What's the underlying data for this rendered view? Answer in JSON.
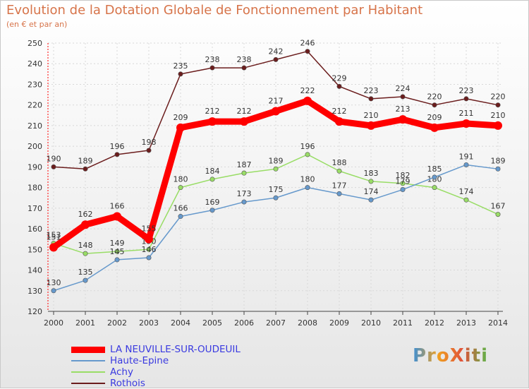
{
  "chart_data": {
    "type": "line",
    "title": "Evolution de la Dotation Globale de Fonctionnement par Habitant",
    "subtitle": "(en € et par an)",
    "xlabel": "",
    "ylabel": "",
    "ylim": [
      120,
      250
    ],
    "yticks": [
      120,
      130,
      140,
      150,
      160,
      170,
      180,
      190,
      200,
      210,
      220,
      230,
      240,
      250
    ],
    "grid": true,
    "legend": "bottom-left",
    "categories": [
      "2000",
      "2001",
      "2002",
      "2003",
      "2004",
      "2005",
      "2006",
      "2007",
      "2008",
      "2009",
      "2010",
      "2011",
      "2012",
      "2013",
      "2014"
    ],
    "series": [
      {
        "name": "Rothois",
        "color": "#6b1d1d",
        "values": [
          190,
          189,
          196,
          198,
          235,
          238,
          238,
          242,
          246,
          229,
          223,
          224,
          220,
          223,
          220
        ]
      },
      {
        "name": "Achy",
        "color": "#99dd66",
        "values": [
          153,
          148,
          149,
          150,
          180,
          184,
          187,
          189,
          196,
          188,
          183,
          182,
          180,
          174,
          167
        ]
      },
      {
        "name": "Haute-Epine",
        "color": "#6699cc",
        "values": [
          130,
          135,
          145,
          146,
          166,
          169,
          173,
          175,
          180,
          177,
          174,
          179,
          185,
          191,
          189
        ]
      },
      {
        "name": "LA NEUVILLE-SUR-OUDEUIL",
        "color": "#ff0000",
        "values": [
          151,
          162,
          166,
          155,
          209,
          212,
          212,
          217,
          222,
          212,
          210,
          213,
          209,
          211,
          210
        ]
      }
    ]
  },
  "legend": {
    "items": [
      {
        "label": "LA NEUVILLE-SUR-OUDEUIL",
        "color": "#ff0000"
      },
      {
        "label": "Haute-Epine",
        "color": "#6699cc"
      },
      {
        "label": "Achy",
        "color": "#99dd66"
      },
      {
        "label": "Rothois",
        "color": "#6b1d1d"
      }
    ]
  },
  "logo": {
    "text": "ProXiti"
  }
}
